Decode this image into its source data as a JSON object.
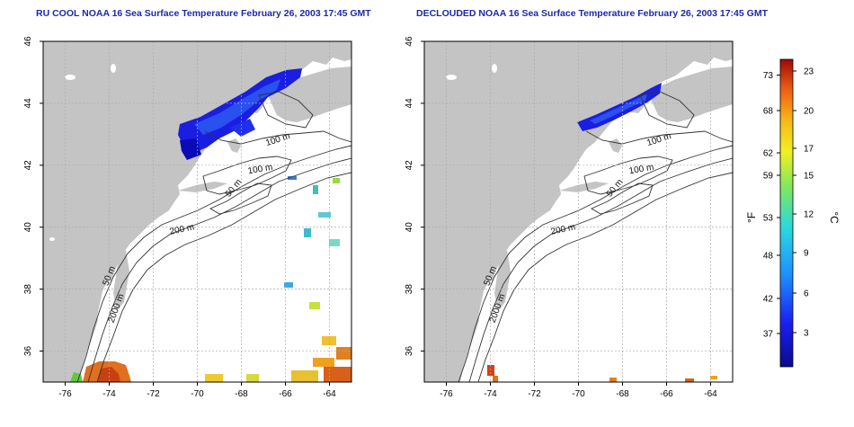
{
  "panels": [
    {
      "title": "RU COOL NOAA 16 Sea Surface Temperature February 26, 2003 17:45 GMT",
      "contour_labels": [
        "100 m",
        "100 m",
        "50 m",
        "200 m",
        "50 m",
        "2000 m"
      ]
    },
    {
      "title": "DECLOUDED NOAA 16 Sea Surface Temperature February 26, 2003 17:45 GMT",
      "contour_labels": [
        "100 m",
        "100 m",
        "50 m",
        "200 m",
        "50 m",
        "2000 m"
      ]
    }
  ],
  "map": {
    "lon_ticks": [
      "-76",
      "-74",
      "-72",
      "-70",
      "-68",
      "-66",
      "-64"
    ],
    "lat_ticks": [
      "36",
      "38",
      "40",
      "42",
      "44",
      "46"
    ]
  },
  "colorbar": {
    "f_label": "°F",
    "c_label": "°C",
    "f_ticks": [
      "73",
      "68",
      "62",
      "59",
      "53",
      "48",
      "42",
      "37"
    ],
    "c_ticks": [
      "23",
      "20",
      "17",
      "15",
      "12",
      "9",
      "6",
      "3"
    ]
  },
  "colors": {
    "land": "#c4c4c4",
    "ocean": "#ffffff",
    "title": "#1a2aa8",
    "cold_sst": "#1a1ee0",
    "warm_sst": "#d85a10"
  }
}
